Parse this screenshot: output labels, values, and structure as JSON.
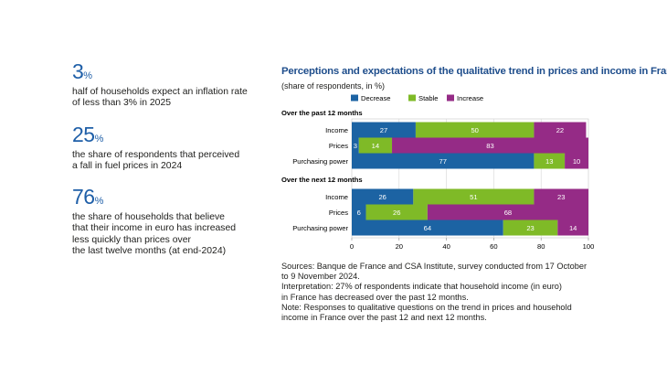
{
  "kpis": [
    {
      "value": "3",
      "unit": "%",
      "text_lines": [
        "half of households expect an inflation rate",
        "of less than 3% in 2025"
      ]
    },
    {
      "value": "25",
      "unit": "%",
      "text_lines": [
        "the share of respondents that perceived",
        "a fall in fuel prices in 2024"
      ]
    },
    {
      "value": "76",
      "unit": "%",
      "text_lines": [
        "the share of households that believe",
        "that their income in euro has increased",
        "less quickly than prices over",
        "the last twelve months (at end-2024)"
      ]
    }
  ],
  "chart_data": {
    "type": "bar",
    "orientation": "horizontal",
    "stacked": true,
    "title": "Perceptions and expectations of the qualitative trend in prices and income in France",
    "subtitle": "(share of respondents, in %)",
    "xlim": [
      0,
      100
    ],
    "xticks": [
      0,
      20,
      40,
      60,
      80,
      100
    ],
    "legend_position": "top",
    "series": [
      {
        "name": "Decrease",
        "color": "#1c63a3"
      },
      {
        "name": "Stable",
        "color": "#7fba27"
      },
      {
        "name": "Increase",
        "color": "#952b86"
      }
    ],
    "groups": [
      {
        "label": "Over the past 12 months",
        "rows": [
          {
            "label": "Income",
            "values": [
              27,
              50,
              22
            ]
          },
          {
            "label": "Prices",
            "values": [
              3,
              14,
              83
            ]
          },
          {
            "label": "Purchasing power",
            "values": [
              77,
              13,
              10
            ]
          }
        ]
      },
      {
        "label": "Over the next 12 months",
        "rows": [
          {
            "label": "Income",
            "values": [
              26,
              51,
              23
            ]
          },
          {
            "label": "Prices",
            "values": [
              6,
              26,
              68
            ]
          },
          {
            "label": "Purchasing power",
            "values": [
              64,
              23,
              14
            ]
          }
        ]
      }
    ]
  },
  "notes": [
    [
      "Sources: Banque de France and CSA Institute, survey conducted from 17 October",
      "to 9 November 2024."
    ],
    [
      "Interpretation: 27% of respondents indicate that household income (in euro)",
      "in France has decreased over the past 12 months."
    ],
    [
      "Note: Responses to qualitative questions on the trend in prices and household",
      "income in France over the past 12 and next 12 months."
    ]
  ]
}
